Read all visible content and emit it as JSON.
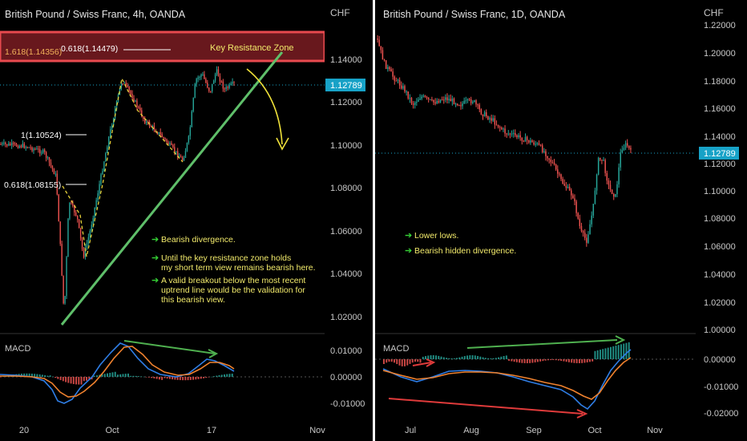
{
  "colors": {
    "background": "#000000",
    "up": "#26a69a",
    "down": "#ef5350",
    "trendline": "#5fbf6a",
    "resistance_fill": "#7a1c22",
    "resistance_border": "#e84a4f",
    "annotation_text": "#f2ea6b",
    "arrow_green": "#36d436",
    "price_label_bg": "#17a2c7",
    "macd_line": "#2f7ee6",
    "signal_line": "#f0822e",
    "divergence_green": "#4fb04f",
    "divergence_red": "#e03b3b",
    "yellow_arrow": "#f0e23a",
    "grid_text": "#c8c8c8",
    "separator": "#ffffff"
  },
  "left": {
    "title": "British Pound / Swiss Franc, 4h, OANDA",
    "currency": "CHF",
    "current_price": "1.12789",
    "macd_label": "MACD",
    "fib_labels": {
      "f1618": "1.618(1.14356)",
      "f0618a": "0.618(1.14479)",
      "f1": "1(1.10524)",
      "f0618b": "0.618(1.08155)"
    },
    "resistance_label": "Key Resistance Zone",
    "notes": {
      "n1": "Bearish divergence.",
      "n2a": "Until the key resistance zone holds",
      "n2b": "my short term view remains bearish here.",
      "n3a": "A valid breakout below the most recent",
      "n3b": "uptrend line would be the validation for",
      "n3c": "this bearish view."
    },
    "icons": {
      "bullet": "right-arrow-icon"
    }
  },
  "right": {
    "title": "British Pound / Swiss Franc, 1D, OANDA",
    "currency": "CHF",
    "current_price": "1.12789",
    "macd_label": "MACD",
    "notes": {
      "n1": "Lower lows.",
      "n2": "Bearish hidden divergence."
    }
  },
  "chart_data": [
    {
      "type": "candlestick",
      "title": "British Pound / Swiss Franc, 4h, OANDA",
      "ylabel": "CHF",
      "ylim": [
        1.01,
        1.15
      ],
      "yticks": [
        "1.14000",
        "1.12000",
        "1.10000",
        "1.08000",
        "1.06000",
        "1.04000",
        "1.02000"
      ],
      "xticks": [
        "20",
        "Oct",
        "17",
        "Nov"
      ],
      "last_price": 1.12789,
      "fib_levels": [
        {
          "label": "1.618",
          "value": 1.14356
        },
        {
          "label": "0.618",
          "value": 1.14479
        },
        {
          "label": "1",
          "value": 1.10524
        },
        {
          "label": "0.618",
          "value": 1.08155
        }
      ],
      "resistance_zone": [
        1.1427,
        1.1568
      ],
      "trendline": {
        "from": {
          "x": "Sep 26",
          "y": 1.016
        },
        "to": {
          "x": "Oct 24",
          "y": 1.146
        }
      },
      "macd": {
        "yticks": [
          "0.01000",
          "0.00000",
          "-0.01000"
        ]
      }
    },
    {
      "type": "candlestick",
      "title": "British Pound / Swiss Franc, 1D, OANDA",
      "ylabel": "CHF",
      "ylim": [
        1.0,
        1.22
      ],
      "yticks": [
        "1.22000",
        "1.20000",
        "1.18000",
        "1.16000",
        "1.14000",
        "1.12000",
        "1.10000",
        "1.08000",
        "1.06000",
        "1.04000",
        "1.02000",
        "1.00000"
      ],
      "xticks": [
        "Jul",
        "Aug",
        "Sep",
        "Oct",
        "Nov"
      ],
      "last_price": 1.12789,
      "macd": {
        "yticks": [
          "0.00000",
          "-0.01000",
          "-0.02000"
        ]
      }
    }
  ]
}
